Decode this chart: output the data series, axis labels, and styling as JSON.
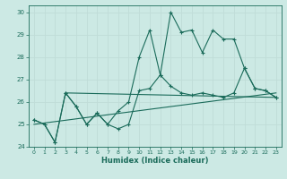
{
  "xlabel": "Humidex (Indice chaleur)",
  "background_color": "#cce9e4",
  "grid_color": "#c0dcd8",
  "line_color": "#1a6b5a",
  "xlim": [
    -0.5,
    23.5
  ],
  "ylim": [
    24,
    30.3
  ],
  "yticks": [
    24,
    25,
    26,
    27,
    28,
    29,
    30
  ],
  "xticks": [
    0,
    1,
    2,
    3,
    4,
    5,
    6,
    7,
    8,
    9,
    10,
    11,
    12,
    13,
    14,
    15,
    16,
    17,
    18,
    19,
    20,
    21,
    22,
    23
  ],
  "line1_x": [
    0,
    1,
    2,
    3,
    4,
    5,
    6,
    7,
    8,
    9,
    10,
    11,
    12,
    13,
    14,
    15,
    16,
    17,
    18,
    19,
    20,
    21,
    22,
    23
  ],
  "line1_y": [
    25.2,
    25.0,
    24.2,
    26.4,
    25.8,
    25.0,
    25.5,
    25.0,
    24.8,
    25.0,
    26.5,
    26.6,
    27.2,
    26.7,
    26.4,
    26.3,
    26.4,
    26.3,
    26.2,
    26.4,
    27.5,
    26.6,
    26.5,
    26.2
  ],
  "line2_x": [
    0,
    1,
    2,
    3,
    4,
    5,
    6,
    7,
    8,
    9,
    10,
    11,
    12,
    13,
    14,
    15,
    16,
    17,
    18,
    19,
    20,
    21,
    22,
    23
  ],
  "line2_y": [
    25.2,
    25.0,
    24.2,
    26.4,
    25.8,
    25.0,
    25.5,
    25.0,
    25.6,
    26.0,
    28.0,
    29.2,
    27.2,
    30.0,
    29.1,
    29.2,
    28.2,
    29.2,
    28.8,
    28.8,
    27.5,
    26.6,
    26.5,
    26.2
  ],
  "trend1_x": [
    0,
    23
  ],
  "trend1_y": [
    25.0,
    26.4
  ],
  "trend2_x": [
    3,
    23
  ],
  "trend2_y": [
    26.4,
    26.2
  ]
}
